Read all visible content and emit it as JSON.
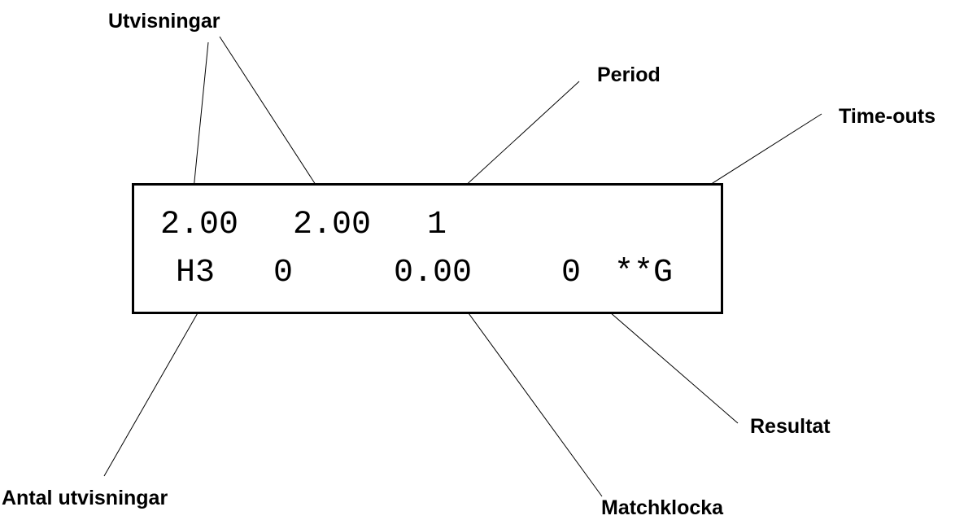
{
  "labels": {
    "utvisningar": "Utvisningar",
    "period": "Period",
    "timeouts": "Time-outs",
    "resultat": "Resultat",
    "antal_utvisningar": "Antal utvisningar",
    "matchklocka": "Matchklocka"
  },
  "display": {
    "row1": {
      "penalty_time_1": "2.00",
      "penalty_time_2": "2.00",
      "period": "1"
    },
    "row2": {
      "penalty_count": "H3",
      "zero": "0",
      "match_clock": "0.00",
      "result": "0",
      "timeouts": "**G"
    }
  }
}
